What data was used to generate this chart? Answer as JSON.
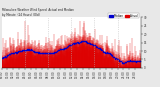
{
  "bg_color": "#e8e8e8",
  "plot_bg_color": "#ffffff",
  "actual_color": "#dd0000",
  "median_color": "#0000cc",
  "ylim": [
    0,
    30
  ],
  "ytick_vals": [
    0,
    5,
    10,
    15,
    20,
    25,
    30
  ],
  "num_points": 1440,
  "legend_actual_label": "Actual",
  "legend_median_label": "Median",
  "vline_color": "#bbbbbb",
  "vline_positions": [
    240,
    480,
    720,
    960,
    1200
  ],
  "title_text": "Milwaukee Weather Wind Speed  Actual and Median\nby Minute  (24 Hours) (Old)",
  "title_fontsize": 2.0,
  "tick_fontsize": 2.0,
  "legend_fontsize": 2.0
}
